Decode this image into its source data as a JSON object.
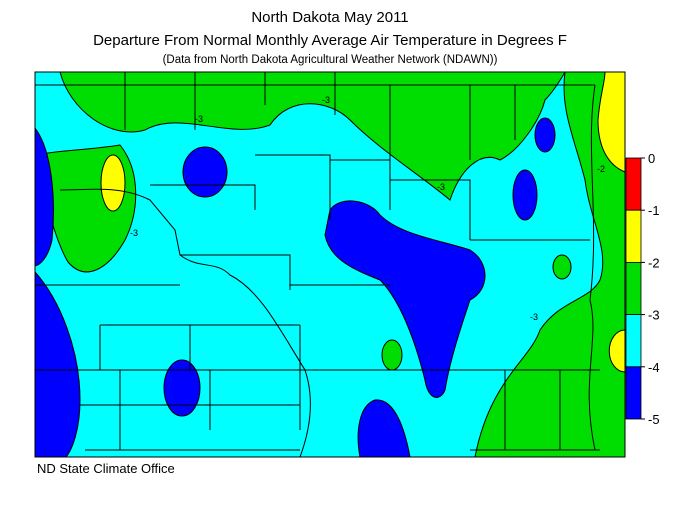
{
  "header": {
    "title": "North Dakota May 2011",
    "subtitle": "Departure From Normal Monthly Average Air Temperature in Degrees F",
    "source": "(Data from North Dakota Agricultural Weather Network (NDAWN))"
  },
  "legend": {
    "ticks": [
      0,
      -1,
      -2,
      -3,
      -4,
      -5
    ],
    "colors": [
      "#ff0000",
      "#ffff00",
      "#00dd00",
      "#00ffff",
      "#0000ff"
    ]
  },
  "contour_labels": [
    "-3",
    "-3",
    "-3",
    "-2",
    "-3",
    "-3"
  ],
  "footer": "ND State Climate Office"
}
